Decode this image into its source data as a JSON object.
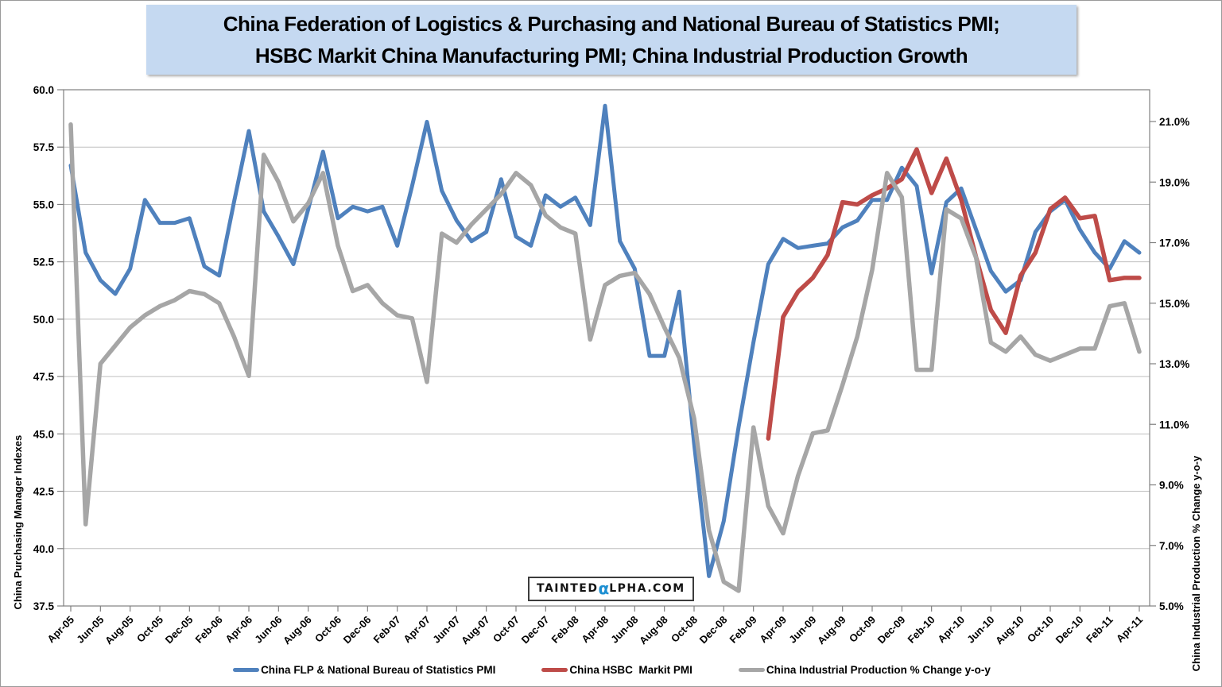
{
  "title": {
    "line1": "China Federation of Logistics & Purchasing and National Bureau of Statistics PMI;",
    "line2": "HSBC Markit China Manufacturing PMI; China Industrial Production Growth"
  },
  "watermark": {
    "pre": "TAINTED",
    "alpha": "α",
    "post": "LPHA.COM"
  },
  "legend": {
    "items": [
      {
        "label": "China FLP & National Bureau of Statistics PMI",
        "color": "#4F81BD"
      },
      {
        "label": "China HSBC  Markit PMI",
        "color": "#BE4B48"
      },
      {
        "label": "China Industrial Production % Change y-o-y",
        "color": "#A6A6A6"
      }
    ]
  },
  "chart_data": {
    "type": "line",
    "grid": "horizontal-only",
    "legend_position": "bottom",
    "x_labels": [
      "Apr-05",
      "Jun-05",
      "Aug-05",
      "Oct-05",
      "Dec-05",
      "Feb-06",
      "Apr-06",
      "Jun-06",
      "Aug-06",
      "Oct-06",
      "Dec-06",
      "Feb-07",
      "Apr-07",
      "Jun-07",
      "Aug-07",
      "Oct-07",
      "Dec-07",
      "Feb-08",
      "Apr-08",
      "Jun-08",
      "Aug-08",
      "Oct-08",
      "Dec-08",
      "Feb-09",
      "Apr-09",
      "Jun-09",
      "Aug-09",
      "Oct-09",
      "Dec-09",
      "Feb-10",
      "Apr-10",
      "Jun-10",
      "Aug-10",
      "Oct-10",
      "Dec-10",
      "Feb-11",
      "Apr-11"
    ],
    "months_between_labels": 2,
    "total_points": 73,
    "left_axis": {
      "title": "China Purchasing Manager Indexes",
      "min": 37.5,
      "max": 60.0,
      "step": 2.5,
      "tick_labels": [
        "60.0",
        "57.5",
        "55.0",
        "52.5",
        "50.0",
        "47.5",
        "45.0",
        "42.5",
        "40.0",
        "37.5"
      ]
    },
    "right_axis": {
      "title": "China Industrial Production % Change y-o-y",
      "min": 5.0,
      "max": 21.0,
      "step": 2.0,
      "tick_labels": [
        "21.0%",
        "19.0%",
        "17.0%",
        "15.0%",
        "13.0%",
        "11.0%",
        "9.0%",
        "7.0%",
        "5.0%"
      ]
    },
    "series": [
      {
        "name": "China FLP & National Bureau of Statistics PMI",
        "color": "#4F81BD",
        "axis": "left",
        "start_index": 0,
        "line_width": 5,
        "values": [
          56.7,
          52.9,
          51.7,
          51.1,
          52.2,
          55.2,
          54.2,
          54.2,
          54.4,
          52.3,
          51.9,
          55.1,
          58.2,
          54.7,
          53.6,
          52.4,
          54.8,
          57.3,
          54.4,
          54.9,
          54.7,
          54.9,
          53.2,
          55.8,
          58.6,
          55.6,
          54.3,
          53.4,
          53.8,
          56.1,
          53.6,
          53.2,
          55.4,
          54.9,
          55.3,
          54.1,
          59.3,
          53.4,
          52.2,
          48.4,
          48.4,
          51.2,
          44.6,
          38.8,
          41.2,
          45.3,
          49.0,
          52.4,
          53.5,
          53.1,
          53.2,
          53.3,
          54.0,
          54.3,
          55.2,
          55.2,
          56.6,
          55.8,
          52.0,
          55.1,
          55.7,
          53.9,
          52.1,
          51.2,
          51.7,
          53.8,
          54.7,
          55.2,
          53.9,
          52.9,
          52.2,
          53.4,
          52.9
        ]
      },
      {
        "name": "China HSBC  Markit PMI",
        "color": "#BE4B48",
        "axis": "left",
        "start_index": 47,
        "line_width": 5.5,
        "values": [
          44.8,
          50.1,
          51.2,
          51.8,
          52.8,
          55.1,
          55.0,
          55.4,
          55.7,
          56.1,
          57.4,
          55.5,
          57.0,
          55.2,
          52.7,
          50.4,
          49.4,
          51.9,
          52.9,
          54.8,
          55.3,
          54.4,
          54.5,
          51.7,
          51.8,
          51.8
        ]
      },
      {
        "name": "China Industrial Production % Change y-o-y",
        "color": "#A6A6A6",
        "axis": "right",
        "start_index": 0,
        "line_width": 5.5,
        "values": [
          20.9,
          7.7,
          13.0,
          13.6,
          14.2,
          14.6,
          14.9,
          15.1,
          15.4,
          15.3,
          15.0,
          13.9,
          12.6,
          19.9,
          19.0,
          17.7,
          18.3,
          19.3,
          16.9,
          15.4,
          15.6,
          15.0,
          14.6,
          14.5,
          12.4,
          17.3,
          17.0,
          17.6,
          18.1,
          18.6,
          19.3,
          18.9,
          17.9,
          17.5,
          17.3,
          13.8,
          15.6,
          15.9,
          16.0,
          15.3,
          14.2,
          13.2,
          11.2,
          7.5,
          5.8,
          5.5,
          10.9,
          8.3,
          7.4,
          9.3,
          10.7,
          10.8,
          12.3,
          13.9,
          16.1,
          19.3,
          18.5,
          12.8,
          12.8,
          18.1,
          17.8,
          16.5,
          13.7,
          13.4,
          13.9,
          13.3,
          13.1,
          13.3,
          13.5,
          13.5,
          14.9,
          15.0,
          13.4
        ]
      }
    ]
  }
}
